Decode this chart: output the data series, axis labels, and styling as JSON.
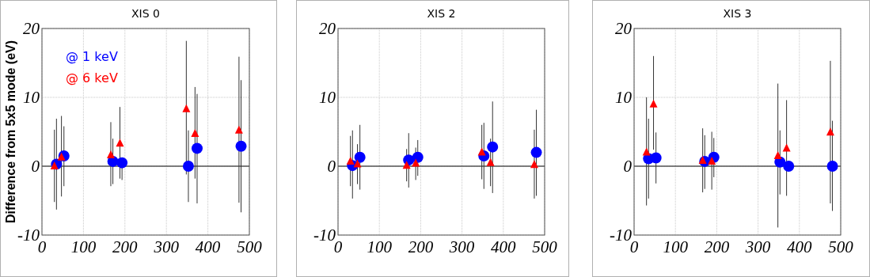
{
  "chart_data": [
    {
      "type": "scatter",
      "title": "XIS 0",
      "ylabel": "Difference from 5x5 mode (eV)",
      "xlim": [
        0,
        500
      ],
      "xticks": [
        0,
        100,
        200,
        300,
        400,
        500
      ],
      "ylim": [
        -10,
        20
      ],
      "yticks": [
        -10,
        0,
        10,
        20
      ],
      "grid": true,
      "legend": "top left",
      "ref_lines": [
        {
          "axis": "y",
          "value": 0,
          "color": "#555555"
        }
      ],
      "series": [
        {
          "name": "@ 1 keV",
          "color": "#0000ff",
          "marker": "circle",
          "x": [
            35,
            53,
            171,
            193,
            353,
            374,
            480
          ],
          "values": [
            0.3,
            1.5,
            0.7,
            0.5,
            0,
            2.6,
            2.9
          ],
          "errors": [
            [
              -6.3,
              6.9
            ],
            [
              -2.9,
              5.8
            ],
            [
              -2.6,
              4.0
            ],
            [
              -2.0,
              1.2
            ],
            [
              -5.2,
              5.2
            ],
            [
              -5.4,
              10.5
            ],
            [
              -6.7,
              12.5
            ]
          ]
        },
        {
          "name": "@ 6 keV",
          "color": "#ff0000",
          "marker": "triangle",
          "x": [
            30,
            47,
            166,
            188,
            348,
            369,
            475
          ],
          "values": [
            0,
            1.3,
            1.6,
            3.3,
            8.3,
            4.7,
            5.2
          ],
          "errors": [
            [
              -5.2,
              5.3
            ],
            [
              -4.4,
              7.3
            ],
            [
              -2.9,
              6.4
            ],
            [
              -1.8,
              8.6
            ],
            [
              -1.2,
              18.2
            ],
            [
              -1.8,
              11.5
            ],
            [
              -5.3,
              15.9
            ]
          ]
        }
      ]
    },
    {
      "type": "scatter",
      "title": "XIS 2",
      "xlim": [
        0,
        500
      ],
      "xticks": [
        0,
        100,
        200,
        300,
        400,
        500
      ],
      "ylim": [
        -10,
        20
      ],
      "yticks": [
        -10,
        0,
        10,
        20
      ],
      "grid": true,
      "ref_lines": [
        {
          "axis": "y",
          "value": 0,
          "color": "#555555"
        }
      ],
      "series": [
        {
          "color": "#0000ff",
          "marker": "circle",
          "x": [
            35,
            53,
            171,
            193,
            353,
            374,
            480
          ],
          "values": [
            0.1,
            1.3,
            0.9,
            1.3,
            1.5,
            2.8,
            2.0
          ],
          "errors": [
            [
              -4.7,
              5.2
            ],
            [
              -3.4,
              6.0
            ],
            [
              -3.1,
              4.8
            ],
            [
              -1.4,
              3.8
            ],
            [
              -3.3,
              6.3
            ],
            [
              -3.9,
              9.4
            ],
            [
              -4.3,
              8.2
            ]
          ]
        },
        {
          "color": "#ff0000",
          "marker": "triangle",
          "x": [
            30,
            47,
            166,
            188,
            348,
            369,
            475
          ],
          "values": [
            0.7,
            0.3,
            0.1,
            0.4,
            2.0,
            0.5,
            0.2
          ],
          "errors": [
            [
              -2.9,
              4.4
            ],
            [
              -2.6,
              3.2
            ],
            [
              -2.2,
              2.5
            ],
            [
              -2.0,
              2.7
            ],
            [
              -1.9,
              6.0
            ],
            [
              -2.9,
              4.0
            ],
            [
              -4.7,
              5.3
            ]
          ]
        }
      ]
    },
    {
      "type": "scatter",
      "title": "XIS 3",
      "xlim": [
        0,
        500
      ],
      "xticks": [
        0,
        100,
        200,
        300,
        400,
        500
      ],
      "ylim": [
        -10,
        20
      ],
      "yticks": [
        -10,
        0,
        10,
        20
      ],
      "grid": true,
      "ref_lines": [
        {
          "axis": "y",
          "value": 0,
          "color": "#555555"
        }
      ],
      "series": [
        {
          "color": "#0000ff",
          "marker": "circle",
          "x": [
            35,
            53,
            171,
            193,
            353,
            374,
            480
          ],
          "values": [
            1.1,
            1.2,
            0.7,
            1.3,
            0.6,
            0,
            0
          ],
          "errors": [
            [
              -4.7,
              6.9
            ],
            [
              -2.5,
              4.9
            ],
            [
              -3.3,
              4.5
            ],
            [
              -1.6,
              4.1
            ],
            [
              -4.1,
              5.2
            ],
            null,
            [
              -6.5,
              6.6
            ]
          ]
        },
        {
          "color": "#ff0000",
          "marker": "triangle",
          "x": [
            30,
            47,
            166,
            188,
            348,
            369,
            475
          ],
          "values": [
            2.0,
            9.0,
            0.8,
            0.7,
            1.5,
            2.6,
            4.9
          ],
          "errors": [
            [
              -5.7,
              10.0
            ],
            [
              2.4,
              16.0
            ],
            [
              -3.8,
              5.5
            ],
            [
              -3.4,
              5.0
            ],
            [
              -8.9,
              12.0
            ],
            [
              -4.3,
              9.6
            ],
            [
              -5.4,
              15.3
            ]
          ]
        }
      ]
    }
  ]
}
